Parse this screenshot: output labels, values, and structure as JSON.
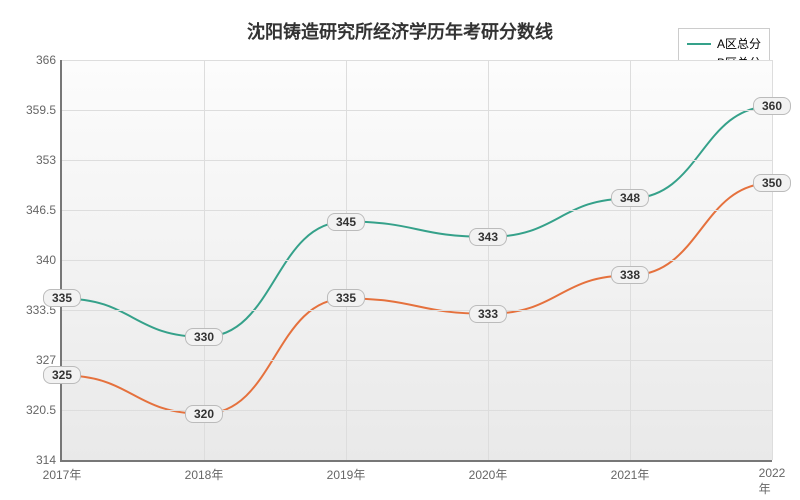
{
  "chart": {
    "type": "line",
    "title": "沈阳铸造研究所经济学历年考研分数线",
    "title_fontsize": 18,
    "title_color": "#333333",
    "background_gradient_top": "#fcfcfc",
    "background_gradient_bottom": "#e9e9e9",
    "axis_color": "#777777",
    "grid_color": "#dddddd",
    "label_color": "#666666",
    "label_fontsize": 12,
    "ylim": [
      314,
      366
    ],
    "ytick_step": 6.5,
    "yticks": [
      "314",
      "320.5",
      "327",
      "333.5",
      "340",
      "346.5",
      "353",
      "359.5",
      "366"
    ],
    "categories": [
      "2017年",
      "2018年",
      "2019年",
      "2020年",
      "2021年",
      "2022年"
    ],
    "series": [
      {
        "name": "A区总分",
        "color": "#35a18a",
        "line_width": 2,
        "values": [
          335,
          330,
          345,
          343,
          348,
          360
        ]
      },
      {
        "name": "B区总分",
        "color": "#e5713d",
        "line_width": 2,
        "values": [
          325,
          320,
          335,
          333,
          338,
          350
        ]
      }
    ],
    "data_label_bg": "#f2f2f2",
    "data_label_border": "#bbbbbb",
    "legend_border": "#cccccc"
  }
}
